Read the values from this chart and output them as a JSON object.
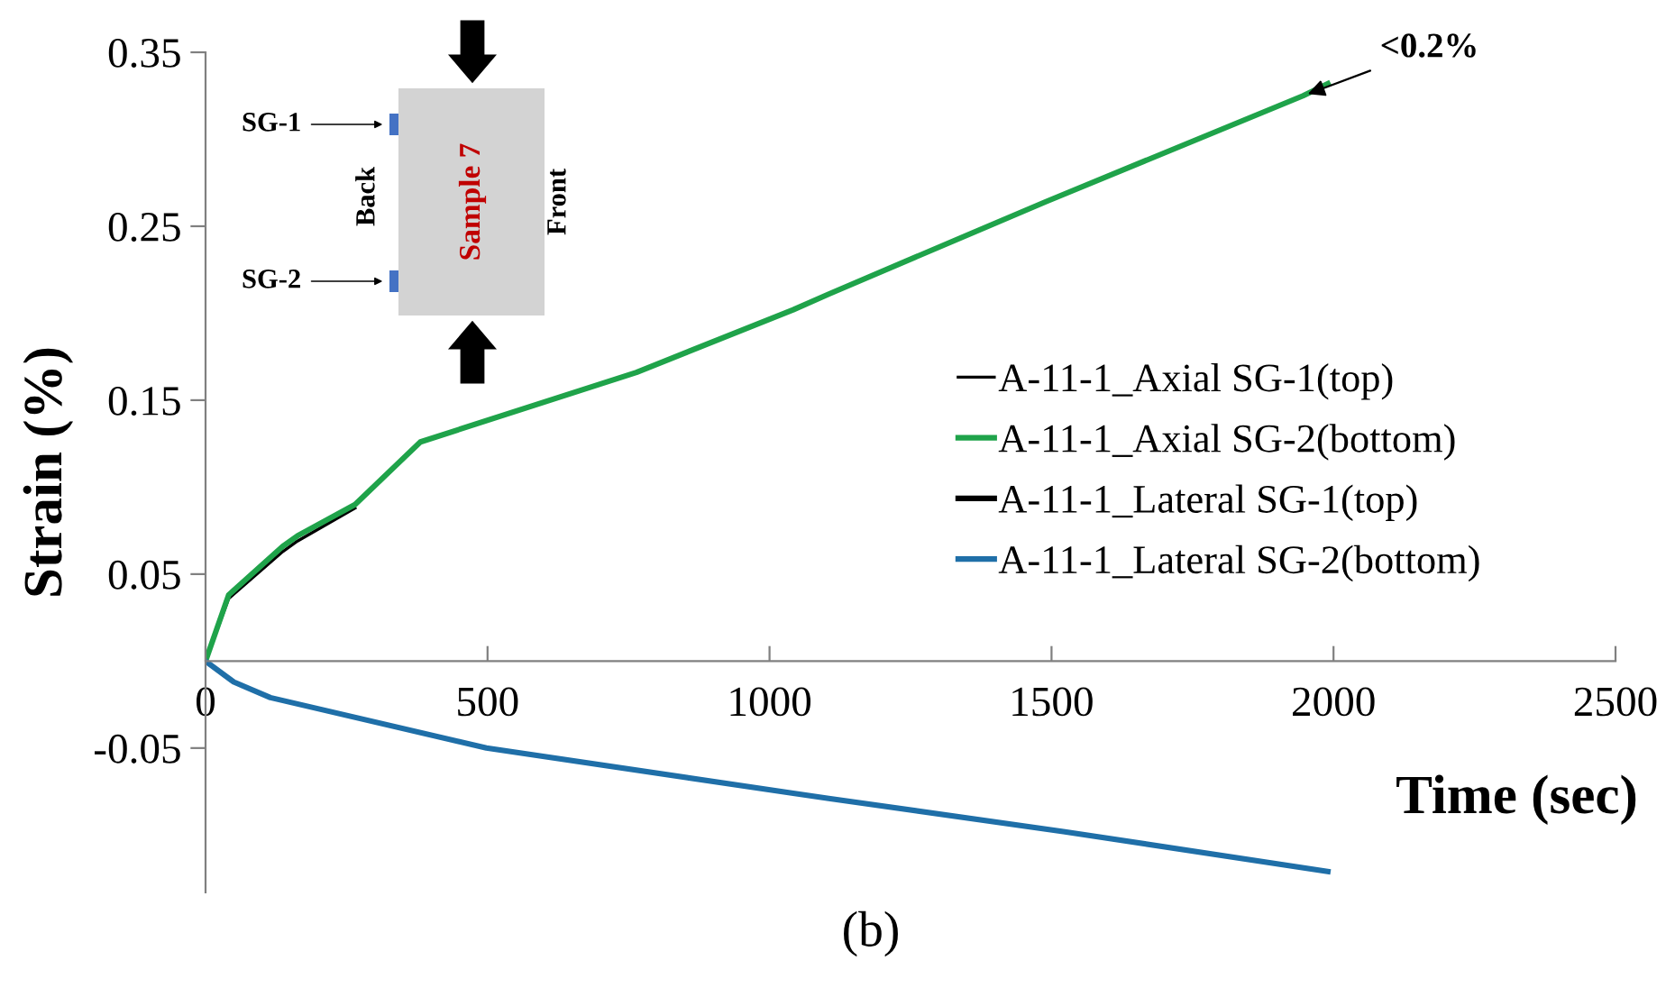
{
  "chart_data": {
    "type": "line",
    "xlabel": "Time (sec)",
    "ylabel": "Strain (%)",
    "xlim": [
      0,
      2500
    ],
    "xticks": [
      0,
      500,
      1000,
      1500,
      2000,
      2500
    ],
    "ylim": [
      -0.133,
      0.35
    ],
    "yticks": [
      -0.05,
      0.05,
      0.15,
      0.25,
      0.35
    ],
    "grid": false,
    "legend": "right",
    "marker": "none",
    "line_style": "solid",
    "series": [
      {
        "name": "A-11-1_Axial SG-1(top)",
        "color": "#000000",
        "x": [
          0,
          41,
          137,
          163,
          265
        ],
        "values": [
          0,
          0.036,
          0.063,
          0.069,
          0.088
        ]
      },
      {
        "name": "A-11-1_Axial SG-2(bottom)",
        "color": "#1fa34a",
        "x": [
          0,
          41,
          137,
          163,
          265,
          381,
          764,
          1042,
          1105,
          1489,
          1946,
          1990
        ],
        "values": [
          0,
          0.038,
          0.066,
          0.072,
          0.09,
          0.126,
          0.166,
          0.202,
          0.211,
          0.264,
          0.325,
          0.332
        ]
      },
      {
        "name": "A-11-1_Lateral SG-1(top)",
        "color": "#000000"
      },
      {
        "name": "A-11-1_Lateral SG-2(bottom)",
        "color": "#1f6fa8",
        "x": [
          0,
          50,
          115,
          498,
          1042,
          1105,
          1521,
          1990
        ],
        "values": [
          0,
          -0.012,
          -0.021,
          -0.05,
          -0.076,
          -0.079,
          -0.098,
          -0.121
        ]
      }
    ],
    "annotations": [
      {
        "text": "<0.2%",
        "x": 1946,
        "y": 0.325
      },
      "SG-1",
      "SG-2",
      "Back",
      "Front",
      "Sample 7",
      "(b)"
    ]
  }
}
